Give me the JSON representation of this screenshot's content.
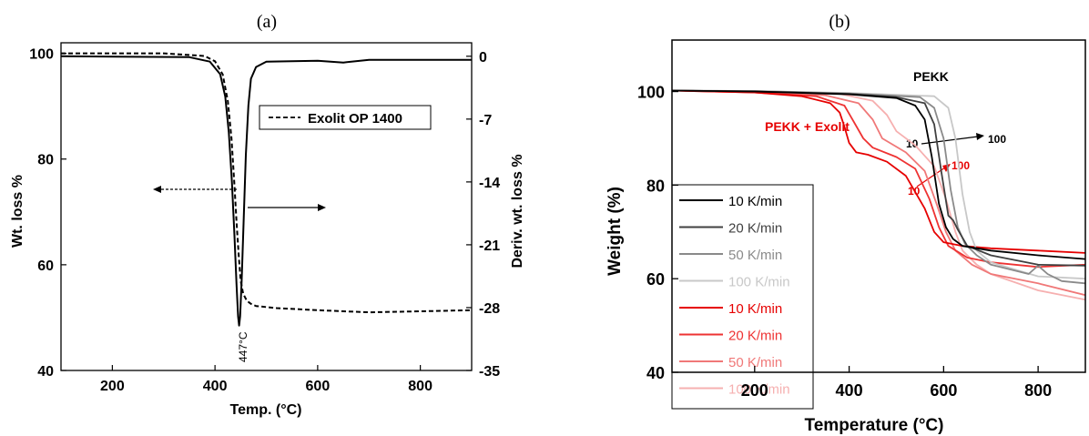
{
  "chart_data": [
    {
      "panel": "(a)",
      "type": "line",
      "xlabel": "Temp. (°C)",
      "ylabel": "Wt. loss %",
      "y2label": "Deriv. wt. loss %",
      "xlim": [
        100,
        900
      ],
      "ylim": [
        40,
        102
      ],
      "y2lim": [
        -35,
        1.5
      ],
      "xticks": [
        200,
        400,
        600,
        800
      ],
      "yticks": [
        40,
        60,
        80,
        100
      ],
      "y2ticks": [
        0,
        -7,
        -14,
        -21,
        -28,
        -35
      ],
      "grid": false,
      "legend": {
        "position": "upper-right",
        "entries": [
          "Exolit OP 1400"
        ]
      },
      "annotation": "447°C",
      "series": [
        {
          "name": "Exolit OP 1400",
          "axis": "left",
          "style": "dashed",
          "x": [
            100,
            300,
            380,
            400,
            415,
            425,
            432,
            438,
            442,
            446,
            450,
            455,
            462,
            470,
            480,
            520,
            600,
            700,
            800,
            900
          ],
          "y": [
            100.0,
            100.0,
            99.5,
            98.5,
            96.0,
            91.0,
            84.0,
            75.0,
            68.0,
            62.0,
            57.0,
            54.5,
            53.2,
            52.6,
            52.2,
            51.8,
            51.4,
            51.0,
            51.2,
            51.4
          ]
        },
        {
          "axis": "right",
          "style": "solid",
          "x": [
            100,
            350,
            390,
            410,
            420,
            427,
            433,
            438,
            442,
            445,
            447,
            449,
            452,
            456,
            460,
            465,
            470,
            480,
            500,
            600,
            650,
            700,
            900
          ],
          "y": [
            0.0,
            -0.1,
            -0.6,
            -2.0,
            -4.5,
            -8.5,
            -14.0,
            -20.0,
            -25.5,
            -29.0,
            -30.0,
            -29.0,
            -25.0,
            -18.0,
            -11.0,
            -5.5,
            -2.5,
            -1.2,
            -0.6,
            -0.5,
            -0.7,
            -0.4,
            -0.4
          ]
        }
      ]
    },
    {
      "panel": "(b)",
      "type": "line",
      "xlabel": "Temperature (°C)",
      "ylabel": "Weight (%)",
      "xlim": [
        25,
        900
      ],
      "ylim": [
        40,
        111
      ],
      "xticks": [
        200,
        400,
        600,
        800
      ],
      "yticks": [
        40,
        60,
        80,
        100
      ],
      "grid": false,
      "legend": {
        "position": "bottom-left"
      },
      "annotations": [
        "PEKK",
        "PEKK + Exolit",
        "10",
        "100",
        "10",
        "100"
      ],
      "series": [
        {
          "name": "10 K/min",
          "color": "#000000",
          "x": [
            25,
            200,
            400,
            500,
            540,
            560,
            575,
            590,
            605,
            620,
            640,
            700,
            800,
            900
          ],
          "y": [
            100.2,
            100.0,
            99.4,
            98.6,
            97.0,
            94.0,
            86.0,
            76.0,
            71.0,
            68.5,
            67.0,
            66.0,
            65.0,
            64.2
          ]
        },
        {
          "name": "20 K/min",
          "color": "#404040",
          "x": [
            25,
            200,
            400,
            500,
            560,
            580,
            595,
            610,
            620,
            630,
            650,
            700,
            800,
            900
          ],
          "y": [
            100.2,
            100.0,
            99.5,
            98.8,
            97.5,
            93.0,
            83.0,
            73.5,
            72.5,
            70.5,
            67.0,
            65.0,
            63.0,
            62.8
          ]
        },
        {
          "name": "50 K/min",
          "color": "#8a8a8a",
          "x": [
            25,
            200,
            400,
            550,
            580,
            600,
            615,
            630,
            645,
            670,
            700,
            780,
            800,
            820,
            850,
            900
          ],
          "y": [
            100.2,
            100.1,
            99.6,
            98.8,
            96.5,
            90.0,
            79.0,
            71.0,
            67.5,
            65.0,
            63.0,
            61.0,
            62.8,
            61.0,
            59.5,
            59.0
          ]
        },
        {
          "name": "100 K/min",
          "color": "#c8c8c8",
          "x": [
            25,
            200,
            400,
            580,
            610,
            625,
            640,
            655,
            670,
            700,
            800,
            900
          ],
          "y": [
            100.2,
            100.1,
            99.7,
            99.0,
            96.5,
            90.0,
            78.0,
            70.0,
            66.0,
            63.5,
            60.5,
            60.0
          ]
        },
        {
          "name": "10 K/min",
          "color": "#e60000",
          "x": [
            25,
            200,
            300,
            360,
            380,
            390,
            400,
            415,
            440,
            480,
            520,
            560,
            580,
            600,
            640,
            700,
            800,
            900
          ],
          "y": [
            100.2,
            99.8,
            99.0,
            97.5,
            95.5,
            92.5,
            89.0,
            87.0,
            86.5,
            85.0,
            82.0,
            75.0,
            70.0,
            67.8,
            67.0,
            66.5,
            66.0,
            65.5
          ]
        },
        {
          "name": "20 K/min",
          "color": "#ee3333",
          "x": [
            25,
            200,
            330,
            390,
            410,
            430,
            450,
            500,
            540,
            570,
            590,
            610,
            650,
            700,
            800,
            900
          ],
          "y": [
            100.2,
            99.8,
            99.0,
            97.0,
            93.5,
            90.0,
            88.0,
            86.0,
            83.5,
            77.0,
            71.0,
            67.0,
            64.5,
            63.5,
            62.5,
            63.0
          ]
        },
        {
          "name": "50 K/min",
          "color": "#f07878",
          "x": [
            25,
            200,
            350,
            420,
            450,
            470,
            520,
            560,
            585,
            605,
            625,
            660,
            700,
            800,
            900
          ],
          "y": [
            100.2,
            99.9,
            99.2,
            97.5,
            94.0,
            90.0,
            87.0,
            83.0,
            76.0,
            70.0,
            66.0,
            63.0,
            61.0,
            59.0,
            56.5
          ]
        },
        {
          "name": "100 K/min",
          "color": "#f6b0b0",
          "x": [
            25,
            200,
            380,
            450,
            480,
            500,
            540,
            580,
            605,
            625,
            640,
            670,
            700,
            800,
            900
          ],
          "y": [
            100.2,
            99.9,
            99.5,
            98.0,
            95.0,
            91.5,
            88.5,
            84.0,
            77.0,
            70.0,
            66.0,
            63.0,
            61.0,
            57.5,
            55.5
          ]
        }
      ]
    }
  ]
}
